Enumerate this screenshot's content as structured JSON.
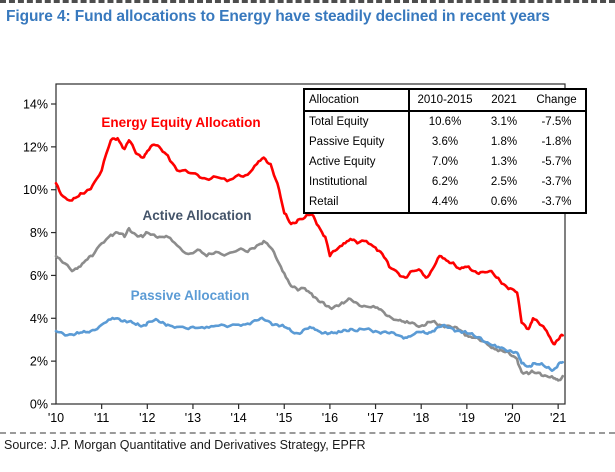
{
  "figure": {
    "title": "Figure 4: Fund allocations to Energy have steadily declined in recent years",
    "source": "Source: J.P. Morgan Quantitative and Derivatives Strategy, EPFR"
  },
  "colors": {
    "title_blue": "#3879BE",
    "energy_red": "#FE0000",
    "active_gray": "#8C8C8C",
    "active_label_slate": "#44546A",
    "passive_blue": "#5B9BD5",
    "axis_black": "#2B2B2B"
  },
  "table": {
    "headers": [
      "Allocation",
      "2010-2015",
      "2021",
      "Change"
    ],
    "rows": [
      [
        "Total Equity",
        "10.6%",
        "3.1%",
        "-7.5%"
      ],
      [
        "Passive Equity",
        "3.6%",
        "1.8%",
        "-1.8%"
      ],
      [
        "Active Equity",
        "7.0%",
        "1.3%",
        "-5.7%"
      ],
      [
        "Institutional",
        "6.2%",
        "2.5%",
        "-3.7%"
      ],
      [
        "Retail",
        "4.4%",
        "0.6%",
        "-3.7%"
      ]
    ]
  },
  "chart_data": {
    "type": "line",
    "title": "Fund allocations to Energy",
    "xlabel": "",
    "ylabel": "",
    "grid": false,
    "legend_position": "inline-labels",
    "ylim": [
      0,
      14.9
    ],
    "ytick_values": [
      0,
      2,
      4,
      6,
      8,
      10,
      12,
      14
    ],
    "ytick_labels": [
      "0%",
      "2%",
      "4%",
      "6%",
      "8%",
      "10%",
      "12%",
      "14%"
    ],
    "xtick_years": [
      2010,
      2011,
      2012,
      2013,
      2014,
      2015,
      2016,
      2017,
      2018,
      2019,
      2020,
      2021
    ],
    "xtick_labels": [
      "'10",
      "'11",
      "'12",
      "'13",
      "'14",
      "'15",
      "'16",
      "'17",
      "'18",
      "'19",
      "'20",
      "'21"
    ],
    "x": [
      2010.0,
      2010.15,
      2010.35,
      2010.5,
      2010.65,
      2010.8,
      2011.0,
      2011.2,
      2011.35,
      2011.5,
      2011.6,
      2011.75,
      2011.9,
      2012.0,
      2012.15,
      2012.3,
      2012.45,
      2012.65,
      2012.9,
      2013.1,
      2013.3,
      2013.5,
      2013.75,
      2014.0,
      2014.2,
      2014.4,
      2014.55,
      2014.7,
      2014.85,
      2015.0,
      2015.15,
      2015.3,
      2015.45,
      2015.6,
      2015.75,
      2015.9,
      2016.0,
      2016.15,
      2016.3,
      2016.45,
      2016.6,
      2016.8,
      2017.0,
      2017.15,
      2017.3,
      2017.5,
      2017.65,
      2017.8,
      2018.0,
      2018.1,
      2018.25,
      2018.4,
      2018.55,
      2018.7,
      2018.85,
      2019.0,
      2019.15,
      2019.3,
      2019.5,
      2019.65,
      2019.8,
      2019.95,
      2020.1,
      2020.2,
      2020.35,
      2020.45,
      2020.6,
      2020.75,
      2020.9,
      2021.0,
      2021.1
    ],
    "series": [
      {
        "name": "Energy Equity Allocation",
        "color": "#FE0000",
        "label_color": "#FE0000",
        "values": [
          10.3,
          9.7,
          9.5,
          9.7,
          9.9,
          10.2,
          10.9,
          12.3,
          12.4,
          11.9,
          12.3,
          11.7,
          11.5,
          11.8,
          12.1,
          11.9,
          11.6,
          10.9,
          10.8,
          10.7,
          10.5,
          10.6,
          10.4,
          10.7,
          10.7,
          11.2,
          11.5,
          11.2,
          10.3,
          8.9,
          8.4,
          8.6,
          8.7,
          8.85,
          8.3,
          7.8,
          6.9,
          7.2,
          7.5,
          7.7,
          7.5,
          7.6,
          7.3,
          7.0,
          6.4,
          6.1,
          5.9,
          6.2,
          6.2,
          5.9,
          6.3,
          6.9,
          6.7,
          6.6,
          6.3,
          6.4,
          6.2,
          6.15,
          6.2,
          5.9,
          5.6,
          5.4,
          5.2,
          3.8,
          3.5,
          4.0,
          3.7,
          3.4,
          2.8,
          3.0,
          3.2
        ]
      },
      {
        "name": "Active Allocation",
        "color": "#8C8C8C",
        "label_color": "#44546A",
        "values": [
          6.9,
          6.6,
          6.2,
          6.4,
          6.7,
          6.9,
          7.5,
          7.9,
          8.0,
          7.8,
          8.2,
          7.9,
          7.8,
          8.0,
          7.9,
          7.8,
          7.8,
          7.4,
          7.0,
          7.2,
          6.9,
          7.1,
          7.0,
          7.2,
          7.1,
          7.4,
          7.6,
          7.3,
          6.7,
          6.1,
          5.5,
          5.3,
          5.4,
          5.15,
          4.8,
          4.6,
          4.5,
          4.6,
          4.7,
          4.9,
          4.7,
          4.55,
          4.5,
          4.35,
          4.1,
          3.9,
          3.8,
          3.8,
          3.65,
          3.7,
          3.85,
          3.7,
          3.65,
          3.55,
          3.45,
          3.2,
          3.1,
          2.95,
          2.7,
          2.55,
          2.45,
          2.3,
          2.1,
          1.5,
          1.4,
          1.5,
          1.45,
          1.3,
          1.2,
          1.1,
          1.3
        ]
      },
      {
        "name": "Passive Allocation",
        "color": "#5B9BD5",
        "label_color": "#5B9BD5",
        "values": [
          3.4,
          3.3,
          3.25,
          3.3,
          3.35,
          3.45,
          3.7,
          3.95,
          4.0,
          3.9,
          3.85,
          3.7,
          3.65,
          3.8,
          3.9,
          3.8,
          3.7,
          3.6,
          3.5,
          3.55,
          3.6,
          3.65,
          3.6,
          3.7,
          3.75,
          3.9,
          3.95,
          3.8,
          3.7,
          3.6,
          3.4,
          3.3,
          3.5,
          3.55,
          3.4,
          3.35,
          3.3,
          3.3,
          3.45,
          3.5,
          3.4,
          3.5,
          3.4,
          3.35,
          3.3,
          3.2,
          3.1,
          3.2,
          3.35,
          3.3,
          3.4,
          3.6,
          3.6,
          3.5,
          3.4,
          3.3,
          3.2,
          3.1,
          2.8,
          2.65,
          2.6,
          2.5,
          2.4,
          1.9,
          1.75,
          1.9,
          1.85,
          1.7,
          1.6,
          1.85,
          1.95
        ]
      }
    ]
  }
}
